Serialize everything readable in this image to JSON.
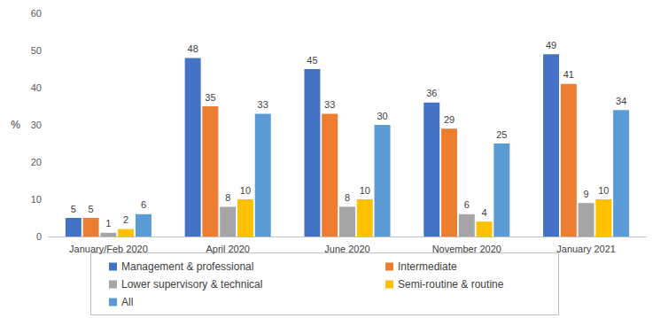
{
  "chart_data": {
    "type": "bar",
    "y_label": "%",
    "categories": [
      "January/Feb 2020",
      "April 2020",
      "June 2020",
      "November 2020",
      "January 2021"
    ],
    "series": [
      {
        "name": "Management & professional",
        "color": "#4472c4",
        "values": [
          5,
          48,
          45,
          36,
          49
        ]
      },
      {
        "name": "Intermediate",
        "color": "#ed7d31",
        "values": [
          5,
          35,
          33,
          29,
          41
        ]
      },
      {
        "name": "Lower supervisory & technical",
        "color": "#a5a5a5",
        "values": [
          1,
          8,
          8,
          6,
          9
        ]
      },
      {
        "name": "Semi-routine & routine",
        "color": "#ffc000",
        "values": [
          2,
          10,
          10,
          4,
          10
        ]
      },
      {
        "name": "All",
        "color": "#5b9bd5",
        "values": [
          6,
          33,
          30,
          25,
          34
        ]
      }
    ],
    "ylim": [
      0,
      60
    ],
    "yticks": [
      0,
      10,
      20,
      30,
      40,
      50,
      60
    ],
    "grid": false,
    "legend": "bottom",
    "data_labels": true
  }
}
